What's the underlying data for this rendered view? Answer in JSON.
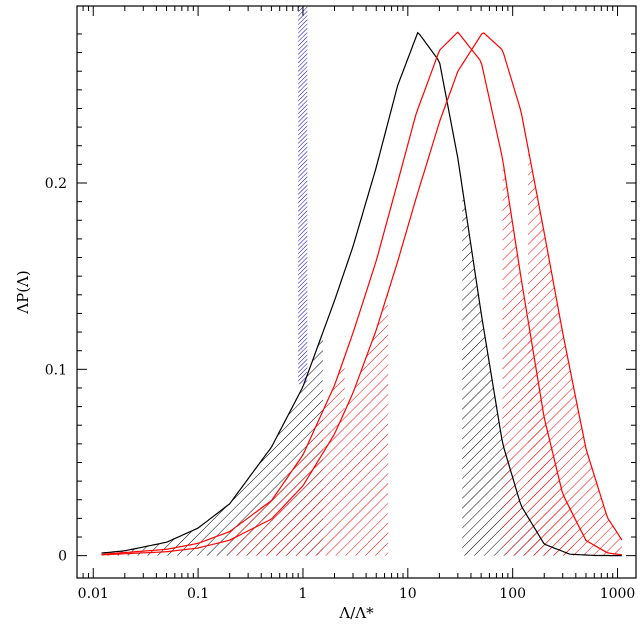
{
  "chart_data": {
    "type": "line",
    "title": "",
    "xlabel": "Λ/Λ*",
    "ylabel": "ΛP(Λ)",
    "x_scale": "log",
    "xlim": [
      0.007,
      1500
    ],
    "ylim": [
      -0.012,
      0.295
    ],
    "x_ticks": [
      0.01,
      0.1,
      1,
      10,
      100,
      1000
    ],
    "x_tick_labels": [
      "0.01",
      "0.1",
      "1",
      "10",
      "100",
      "1000"
    ],
    "y_ticks": [
      0,
      0.1,
      0.2
    ],
    "y_tick_labels": [
      "0",
      "0.1",
      "0.2"
    ],
    "grid": false,
    "legend": "none",
    "series": [
      {
        "color": "#000000",
        "peak_x": 12.5,
        "x": [
          0.012,
          0.02,
          0.05,
          0.1,
          0.2,
          0.5,
          1,
          2,
          3,
          5,
          8,
          12.5,
          20,
          30,
          50,
          80,
          120,
          200,
          350,
          600,
          1100
        ],
        "y": [
          0.0014,
          0.0026,
          0.0072,
          0.0148,
          0.0278,
          0.0582,
          0.0907,
          0.1369,
          0.1659,
          0.2084,
          0.2523,
          0.281,
          0.2652,
          0.2132,
          0.1302,
          0.0603,
          0.0269,
          0.0062,
          0.0008,
          0.0001,
          0.0
        ],
        "shaded_ranges": [
          [
            0.012,
            0.18
          ],
          [
            0.18,
            1.55
          ],
          [
            33,
            85
          ],
          [
            85,
            240
          ]
        ]
      },
      {
        "color": "#ff0000",
        "peak_x": 30,
        "x": [
          0.012,
          0.05,
          0.1,
          0.2,
          0.5,
          1,
          2,
          3,
          5,
          8,
          12,
          20,
          30,
          50,
          80,
          120,
          200,
          300,
          500,
          800,
          1100
        ],
        "y": [
          0.0007,
          0.0034,
          0.0066,
          0.0129,
          0.0295,
          0.0541,
          0.0914,
          0.1195,
          0.1582,
          0.2003,
          0.2371,
          0.2712,
          0.281,
          0.2652,
          0.2132,
          0.1493,
          0.0739,
          0.0331,
          0.0081,
          0.0015,
          0.0004
        ],
        "shaded_ranges": [
          [
            0.2,
            0.72
          ],
          [
            0.72,
            2.5
          ],
          [
            80,
            200
          ],
          [
            200,
            380
          ]
        ]
      },
      {
        "color": "#ff0000",
        "peak_x": 52,
        "x": [
          0.012,
          0.05,
          0.1,
          0.2,
          0.5,
          1,
          2,
          3,
          5,
          8,
          12,
          20,
          30,
          52,
          80,
          120,
          200,
          300,
          500,
          800,
          1100
        ],
        "y": [
          0.0004,
          0.0021,
          0.0041,
          0.0083,
          0.0196,
          0.0375,
          0.0653,
          0.0873,
          0.1211,
          0.1578,
          0.1918,
          0.2327,
          0.26,
          0.281,
          0.2714,
          0.2386,
          0.1733,
          0.1197,
          0.0573,
          0.0204,
          0.0084
        ],
        "shaded_ranges": [
          [
            2.5,
            6.5
          ],
          [
            140,
            350
          ],
          [
            350,
            1100
          ]
        ]
      }
    ],
    "vertical_band": {
      "color": "#0000cc",
      "x_range": [
        0.9,
        1.1
      ]
    }
  }
}
